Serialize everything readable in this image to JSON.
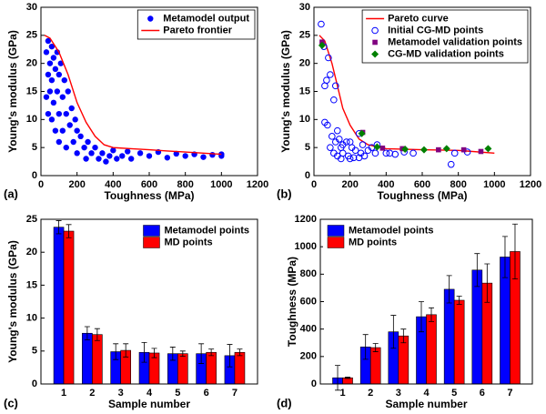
{
  "chart_data": [
    {
      "type": "scatter",
      "panel_label": "(a)",
      "x_label": "Toughness (MPa)",
      "y_label": "Young's modulus (GPa)",
      "xlim": [
        0,
        1200
      ],
      "xticks": [
        0,
        200,
        400,
        600,
        800,
        1000,
        1200
      ],
      "ylim": [
        0,
        30
      ],
      "yticks": [
        0,
        5,
        10,
        15,
        20,
        25,
        30
      ],
      "legend": "upper right",
      "series": [
        {
          "name": "Metamodel output",
          "color": "#0000ff",
          "marker": "dot",
          "x": [
            30,
            30,
            40,
            40,
            40,
            50,
            50,
            60,
            60,
            60,
            70,
            70,
            80,
            80,
            90,
            90,
            100,
            100,
            100,
            110,
            120,
            120,
            130,
            140,
            140,
            150,
            160,
            170,
            180,
            190,
            200,
            200,
            220,
            240,
            250,
            260,
            280,
            300,
            320,
            340,
            360,
            380,
            400,
            420,
            450,
            480,
            500,
            550,
            600,
            650,
            700,
            750,
            800,
            850,
            900,
            950,
            1000,
            1000
          ],
          "y": [
            22,
            14,
            24,
            18,
            11,
            20,
            15,
            23,
            17,
            10,
            21,
            13,
            19,
            8,
            22,
            15,
            18,
            11,
            6,
            20,
            14,
            8,
            17,
            11,
            5,
            15,
            9,
            12,
            6,
            10,
            4,
            8,
            7,
            5,
            3,
            6,
            4,
            5,
            3,
            4,
            2.5,
            3.5,
            4.5,
            3,
            3.5,
            4.3,
            3,
            4,
            3.5,
            4.2,
            3.2,
            3.9,
            3.5,
            3.8,
            3.3,
            3.7,
            3.5,
            3.8
          ]
        },
        {
          "name": "Pareto frontier",
          "color": "#ff0000",
          "marker": "line",
          "x": [
            20,
            50,
            100,
            150,
            200,
            250,
            300,
            350,
            400,
            500,
            600,
            700,
            800,
            900,
            1000
          ],
          "y": [
            25,
            24.5,
            22,
            18,
            13,
            9.5,
            7,
            5.5,
            5,
            4.8,
            4.6,
            4.4,
            4.2,
            4.0,
            3.8
          ]
        }
      ]
    },
    {
      "type": "scatter",
      "panel_label": "(b)",
      "x_label": "Toughness (MPa)",
      "y_label": "Young's modulus (GPa)",
      "xlim": [
        0,
        1200
      ],
      "xticks": [
        0,
        200,
        400,
        600,
        800,
        1000,
        1200
      ],
      "ylim": [
        0,
        30
      ],
      "yticks": [
        0,
        5,
        10,
        15,
        20,
        25,
        30
      ],
      "legend": "upper right",
      "series": [
        {
          "name": "Pareto curve",
          "color": "#ff0000",
          "marker": "line",
          "x": [
            30,
            60,
            100,
            130,
            160,
            200,
            250,
            300,
            400,
            600,
            800,
            1000
          ],
          "y": [
            25,
            24,
            20,
            16,
            12,
            9,
            6.5,
            5.5,
            4.8,
            4.6,
            4.5,
            4.0
          ]
        },
        {
          "name": "Initial CG-MD points",
          "color": "#0000ff",
          "marker": "circle-open",
          "x": [
            40,
            55,
            60,
            70,
            80,
            90,
            60,
            75,
            120,
            110,
            100,
            130,
            120,
            140,
            150,
            160,
            180,
            200,
            210,
            230,
            250,
            270,
            260,
            300,
            320,
            340,
            90,
            110,
            130,
            160,
            190,
            220,
            280,
            350,
            400,
            420,
            450,
            500,
            550,
            760,
            780,
            850,
            150,
            200,
            250
          ],
          "y": [
            27,
            23,
            16,
            17,
            21,
            18,
            9.5,
            9,
            16,
            13.5,
            7,
            8,
            6,
            6.5,
            5,
            5.5,
            6,
            6,
            5,
            4.5,
            7.5,
            5.5,
            4,
            4.5,
            5,
            4,
            5,
            4,
            3.5,
            4,
            3.5,
            3.2,
            3.5,
            5.5,
            4,
            4,
            3.8,
            4.2,
            4,
            2,
            4,
            4.2,
            3,
            3,
            3.2
          ]
        },
        {
          "name": "Metamodel validation points",
          "color": "#800080",
          "marker": "square",
          "x": [
            45,
            270,
            380,
            490,
            690,
            830,
            925
          ],
          "y": [
            23.8,
            7.7,
            4.9,
            4.8,
            4.6,
            4.6,
            4.3
          ]
        },
        {
          "name": "CG-MD validation points",
          "color": "#008000",
          "marker": "diamond",
          "x": [
            45,
            265,
            350,
            505,
            610,
            735,
            965
          ],
          "y": [
            23.2,
            7.5,
            5.1,
            4.7,
            4.6,
            4.8,
            4.8
          ]
        }
      ]
    },
    {
      "type": "bar",
      "panel_label": "(c)",
      "x_label": "Sample number",
      "y_label": "Young's modulus (GPa)",
      "categories": [
        "1",
        "2",
        "3",
        "4",
        "5",
        "6",
        "7"
      ],
      "ylim": [
        0,
        25
      ],
      "yticks": [
        0,
        5,
        10,
        15,
        20,
        25
      ],
      "legend": "upper right",
      "series": [
        {
          "name": "Metamodel points",
          "color": "#0000ff",
          "values": [
            23.8,
            7.7,
            4.9,
            4.8,
            4.6,
            4.6,
            4.3
          ],
          "errors": [
            1.0,
            1.0,
            1.2,
            1.5,
            1.0,
            1.5,
            1.7
          ]
        },
        {
          "name": "MD points",
          "color": "#ff0000",
          "values": [
            23.2,
            7.5,
            5.1,
            4.7,
            4.6,
            4.8,
            4.8
          ],
          "errors": [
            1.0,
            0.9,
            1.0,
            0.7,
            0.4,
            0.5,
            0.5
          ]
        }
      ]
    },
    {
      "type": "bar",
      "panel_label": "(d)",
      "x_label": "Sample number",
      "y_label": "Toughness (MPa)",
      "categories": [
        "1",
        "2",
        "3",
        "4",
        "5",
        "6",
        "7"
      ],
      "ylim": [
        0,
        1200
      ],
      "yticks": [
        0,
        200,
        400,
        600,
        800,
        1000,
        1200
      ],
      "legend": "upper left",
      "series": [
        {
          "name": "Metamodel points",
          "color": "#0000ff",
          "values": [
            45,
            270,
            380,
            490,
            690,
            830,
            925
          ],
          "errors": [
            90,
            90,
            120,
            110,
            100,
            120,
            150
          ]
        },
        {
          "name": "MD points",
          "color": "#ff0000",
          "values": [
            45,
            265,
            350,
            505,
            610,
            735,
            965
          ],
          "errors": [
            5,
            30,
            50,
            50,
            30,
            140,
            200
          ]
        }
      ]
    }
  ]
}
